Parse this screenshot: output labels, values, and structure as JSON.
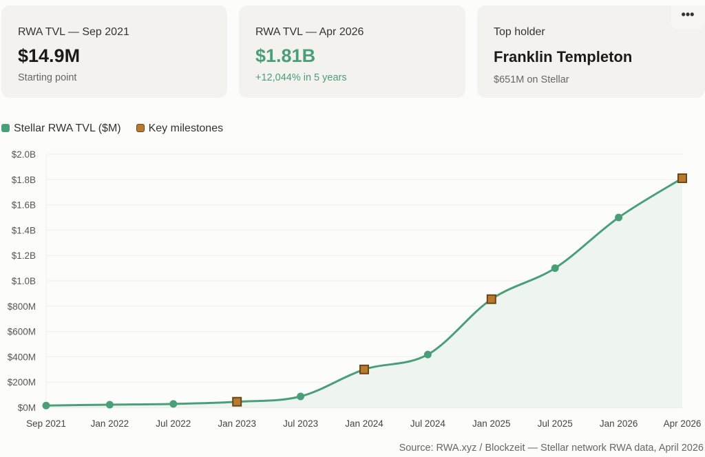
{
  "cards": [
    {
      "label": "RWA TVL — Sep 2021",
      "value": "$14.9M",
      "sub": "Starting point"
    },
    {
      "label": "RWA TVL — Apr 2026",
      "value": "$1.81B",
      "sub": "+12,044% in 5 years"
    },
    {
      "label": "Top holder",
      "value": "Franklin Templeton",
      "sub": "$651M on Stellar"
    }
  ],
  "more_label": "•••",
  "colors": {
    "line": "#4a9e78",
    "fill": "#eef5f0",
    "milestone": "#b87a2e",
    "milestone_border": "#6b4518"
  },
  "chart_data": {
    "type": "line",
    "legend": [
      {
        "name": "Stellar RWA TVL ($M)",
        "color": "#4a9e78"
      },
      {
        "name": "Key milestones",
        "color": "#b87a2e"
      }
    ],
    "legend_position": "top-left",
    "categories": [
      "Sep 2021",
      "Jan 2022",
      "Jul 2022",
      "Jan 2023",
      "Jul 2023",
      "Jan 2024",
      "Jul 2024",
      "Jan 2025",
      "Jul 2025",
      "Jan 2026",
      "Apr 2026"
    ],
    "series": [
      {
        "name": "Stellar RWA TVL ($M)",
        "values": [
          14.9,
          22,
          28,
          45,
          87,
          300,
          418,
          855,
          1100,
          1500,
          1810
        ]
      }
    ],
    "milestones": [
      false,
      false,
      false,
      true,
      false,
      true,
      false,
      true,
      false,
      false,
      true
    ],
    "ylim": [
      0,
      2000
    ],
    "yticks": [
      0,
      200,
      400,
      600,
      800,
      1000,
      1200,
      1400,
      1600,
      1800,
      2000
    ],
    "ytick_labels": [
      "$0M",
      "$200M",
      "$400M",
      "$600M",
      "$800M",
      "$1.0B",
      "$1.2B",
      "$1.4B",
      "$1.6B",
      "$1.8B",
      "$2.0B"
    ],
    "grid": true,
    "source": "Source: RWA.xyz / Blockzeit — Stellar network RWA data, April 2026"
  }
}
